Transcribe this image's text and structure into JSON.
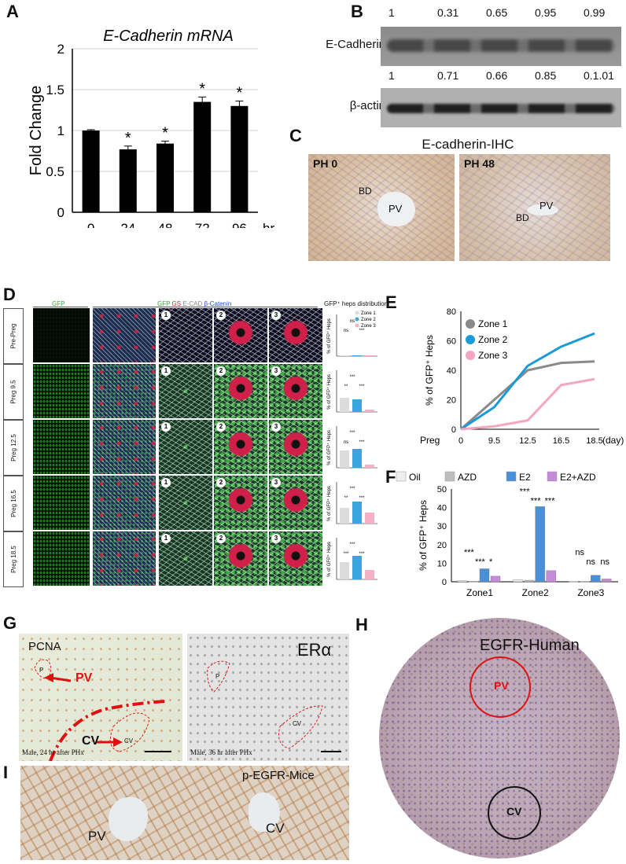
{
  "panels": {
    "A": {
      "letter": "A"
    },
    "B": {
      "letter": "B",
      "ecad_label": "E-Cadherin",
      "actin_label": "β-actin",
      "ecad_values": [
        "1",
        "0.31",
        "0.65",
        "0.95",
        "0.99"
      ],
      "actin_values": [
        "1",
        "0.71",
        "0.66",
        "0.85",
        "0.1.01"
      ]
    },
    "C": {
      "letter": "C",
      "title": "E-cadherin-IHC",
      "left_label": "PH 0",
      "right_label": "PH 48",
      "bd": "BD",
      "pv": "PV"
    },
    "D": {
      "letter": "D",
      "col_gfp": "GFP",
      "col_merge_gfp": "GFP",
      "col_merge_gs": "GS",
      "col_merge_ecad": "E-CAD",
      "col_merge_bcat": "β-Catenin",
      "rows": [
        "Pre-Preg",
        "Preg 9.5",
        "Preg 12.5",
        "Preg 16.5",
        "Preg 18.5"
      ],
      "zoom_nums": [
        "1",
        "2",
        "3"
      ],
      "dist_title": "GFP⁺ heps distribution",
      "legend": [
        "Zone 1",
        "Zone 2",
        "Zone 3"
      ],
      "ylabel": "% of GFP⁺ Heps",
      "sig_rows": [
        [
          "ns",
          "ns",
          "***"
        ],
        [
          "***",
          "**",
          "***"
        ],
        [
          "***",
          "ns",
          "***"
        ],
        [
          "***",
          "**",
          "***"
        ],
        [
          "***",
          "***",
          "***"
        ]
      ]
    },
    "E": {
      "letter": "E"
    },
    "F": {
      "letter": "F"
    },
    "G": {
      "letter": "G",
      "pcna": "PCNA",
      "pv": "PV",
      "cv": "CV",
      "p": "P",
      "cv_small": "CV",
      "era": "ERα",
      "left_caption": "Male, 24 hr after PHx",
      "right_caption": "Male, 36 hr after PHx"
    },
    "H": {
      "letter": "H",
      "title": "EGFR-Human",
      "pv": "PV",
      "cv": "CV"
    },
    "I": {
      "letter": "I",
      "title": "p-EGFR-Mice",
      "pv": "PV",
      "cv": "CV"
    }
  },
  "chart_data": [
    {
      "id": "A",
      "type": "bar",
      "title": "E-Cadherin mRNA",
      "ylabel": "Fold Change",
      "xlabel_unit": "hrs",
      "categories": [
        "0",
        "24",
        "48",
        "72",
        "96"
      ],
      "values": [
        1.0,
        0.77,
        0.84,
        1.35,
        1.3
      ],
      "errors": [
        0.01,
        0.04,
        0.03,
        0.06,
        0.06
      ],
      "significance": [
        "",
        "*",
        "*",
        "*",
        "*"
      ],
      "ylim": [
        0,
        2
      ],
      "yticks": [
        "0",
        "0.5",
        "1",
        "1.5",
        "2"
      ],
      "color": "#000000"
    },
    {
      "id": "E",
      "type": "line",
      "ylabel": "% of GFP⁺ Heps",
      "xlabel_unit": "(day)",
      "x_prefix": "Preg",
      "x": [
        "0",
        "9.5",
        "12.5",
        "16.5",
        "18.5"
      ],
      "ylim": [
        0,
        80
      ],
      "yticks": [
        "0",
        "20",
        "40",
        "60",
        "80"
      ],
      "series": [
        {
          "name": "Zone 1",
          "color": "#8a8a8a",
          "values": [
            0,
            20,
            40,
            45,
            46
          ]
        },
        {
          "name": "Zone 2",
          "color": "#1a9bd7",
          "values": [
            0,
            15,
            43,
            56,
            65
          ]
        },
        {
          "name": "Zone 3",
          "color": "#f4a6c0",
          "values": [
            0,
            2,
            6,
            30,
            34
          ]
        }
      ],
      "legend": "top-left"
    },
    {
      "id": "F",
      "type": "bar",
      "ylabel": "% of GFP⁺ Heps",
      "categories": [
        "Zone1",
        "Zone2",
        "Zone3"
      ],
      "ylim": [
        0,
        50
      ],
      "yticks": [
        "0",
        "10",
        "20",
        "30",
        "40",
        "50"
      ],
      "series": [
        {
          "name": "Oil",
          "color": "#eeeeee",
          "values": [
            0.5,
            1.0,
            0.3
          ]
        },
        {
          "name": "AZD",
          "color": "#bdbdbd",
          "values": [
            0.3,
            0.8,
            0.2
          ]
        },
        {
          "name": "E2",
          "color": "#4a90d9",
          "values": [
            7.0,
            40.5,
            3.5
          ]
        },
        {
          "name": "E2+AZD",
          "color": "#c58ad9",
          "values": [
            3.0,
            6.0,
            1.5
          ]
        }
      ],
      "sig_labels": [
        [
          "***",
          "***",
          "*"
        ],
        [
          "***",
          "***",
          "***"
        ],
        [
          "ns",
          "ns",
          "ns"
        ]
      ],
      "legend": "top"
    }
  ]
}
